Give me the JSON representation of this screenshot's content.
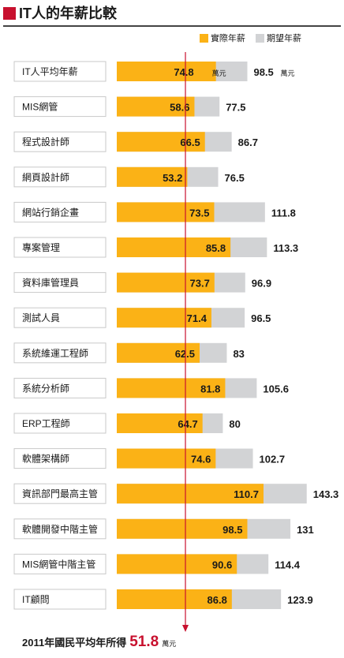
{
  "title": "IT人的年薪比較",
  "legend": {
    "actual_label": "實際年薪",
    "expected_label": "期望年薪"
  },
  "colors": {
    "actual": "#fbb216",
    "expected": "#d2d3d5",
    "reference_line": "#c8102e",
    "title_mark": "#c8102e",
    "label_box_border": "#c9c9c9"
  },
  "unit": "萬元",
  "chart_data": {
    "type": "bar",
    "orientation": "horizontal",
    "categories": [
      "IT人平均年薪",
      "MIS網管",
      "程式設計師",
      "網頁設計師",
      "網站行銷企畫",
      "專案管理",
      "資料庫管理員",
      "測試人員",
      "系統維運工程師",
      "系統分析師",
      "ERP工程師",
      "軟體架構師",
      "資訊部門最高主管",
      "軟體開發中階主管",
      "MIS網管中階主管",
      "IT顧問"
    ],
    "series": [
      {
        "name": "實際年薪",
        "values": [
          74.8,
          58.6,
          66.5,
          53.2,
          73.5,
          85.8,
          73.7,
          71.4,
          62.5,
          81.8,
          64.7,
          74.6,
          110.7,
          98.5,
          90.6,
          86.8
        ]
      },
      {
        "name": "期望年薪",
        "values": [
          98.5,
          77.5,
          86.7,
          76.5,
          111.8,
          113.3,
          96.9,
          96.5,
          83,
          105.6,
          80,
          102.7,
          143.3,
          131,
          114.4,
          123.9
        ]
      }
    ],
    "value_labels": {
      "actual": [
        "74.8",
        "58.6",
        "66.5",
        "53.2",
        "73.5",
        "85.8",
        "73.7",
        "71.4",
        "62.5",
        "81.8",
        "64.7",
        "74.6",
        "110.7",
        "98.5",
        "90.6",
        "86.8"
      ],
      "expected": [
        "98.5",
        "77.5",
        "86.7",
        "76.5",
        "111.8",
        "113.3",
        "96.9",
        "96.5",
        "83",
        "105.6",
        "80",
        "102.7",
        "143.3",
        "131",
        "114.4",
        "123.9"
      ]
    },
    "reference_line": {
      "value": 51.8
    },
    "grid": false,
    "legend_position": "top-right"
  },
  "footer": {
    "text": "2011年國民平均年所得",
    "value": "51.8",
    "unit": "萬元"
  }
}
